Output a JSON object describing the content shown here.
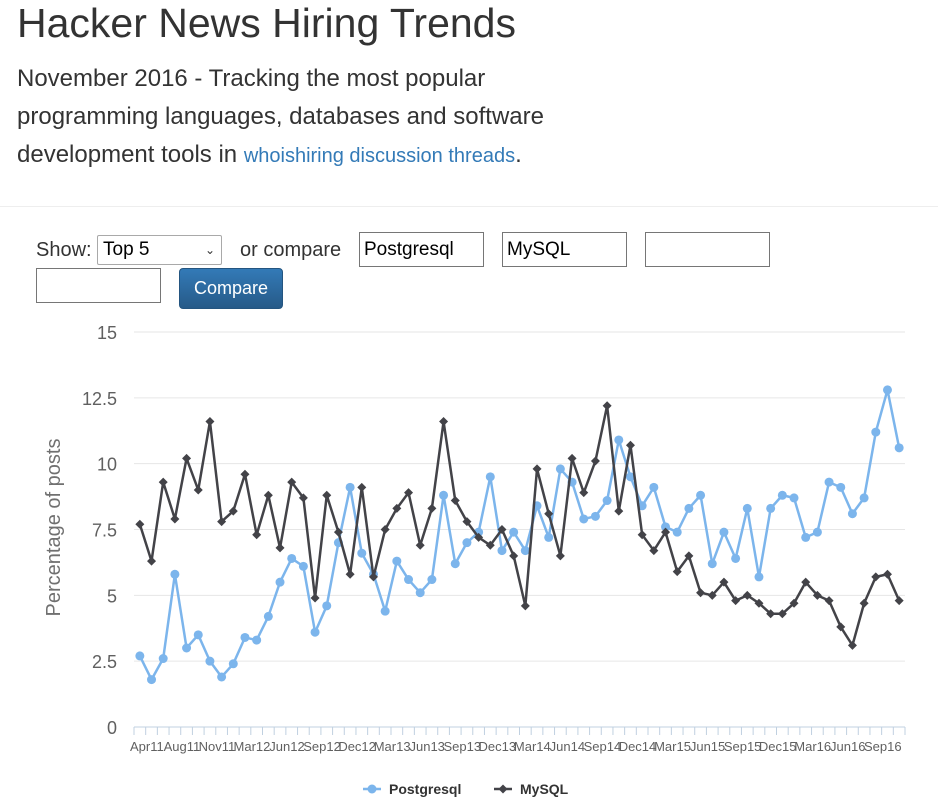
{
  "header": {
    "title": "Hacker News Hiring Trends",
    "lead_text": "November 2016 - Tracking the most popular programming languages, databases and software development tools in",
    "lead_link": "whoishiring discussion threads",
    "lead_end": "."
  },
  "controls": {
    "show_label": "Show:",
    "select_value": "Top 5",
    "compare_label": "or compare",
    "inputs": [
      "Postgresql",
      "MySQL",
      "",
      ""
    ],
    "compare_button": "Compare"
  },
  "chart_data": {
    "type": "line",
    "ylabel": "Percentage of posts",
    "ylim": [
      0,
      15
    ],
    "yticks": [
      "0",
      "2.5",
      "5",
      "7.5",
      "10",
      "12.5",
      "15"
    ],
    "xtick_labels": [
      "Apr11",
      "Aug11",
      "Nov11",
      "Mar12",
      "Jun12",
      "Sep12",
      "Dec12",
      "Mar13",
      "Jun13",
      "Sep13",
      "Dec13",
      "Mar14",
      "Jun14",
      "Sep14",
      "Dec14",
      "Mar15",
      "Jun15",
      "Sep15",
      "Dec15",
      "Mar16",
      "Jun16",
      "Sep16"
    ],
    "legend_position": "bottom",
    "series": [
      {
        "name": "Postgresql",
        "color": "#7cb5ec",
        "marker": "circle",
        "values": [
          2.7,
          1.8,
          2.6,
          5.8,
          3.0,
          3.5,
          2.5,
          1.9,
          2.4,
          3.4,
          3.3,
          4.2,
          5.5,
          6.4,
          6.1,
          3.6,
          4.6,
          7.0,
          9.1,
          6.6,
          5.8,
          4.4,
          6.3,
          5.6,
          5.1,
          5.6,
          8.8,
          6.2,
          7.0,
          7.4,
          9.5,
          6.7,
          7.4,
          6.7,
          8.4,
          7.2,
          9.8,
          9.3,
          7.9,
          8.0,
          8.6,
          10.9,
          9.5,
          8.4,
          9.1,
          7.6,
          7.4,
          8.3,
          8.8,
          6.2,
          7.4,
          6.4,
          8.3,
          5.7,
          8.3,
          8.8,
          8.7,
          7.2,
          7.4,
          9.3,
          9.1,
          8.1,
          8.7,
          11.2,
          12.8,
          10.6
        ]
      },
      {
        "name": "MySQL",
        "color": "#434348",
        "marker": "diamond",
        "values": [
          7.7,
          6.3,
          9.3,
          7.9,
          10.2,
          9.0,
          11.6,
          7.8,
          8.2,
          9.6,
          7.3,
          8.8,
          6.8,
          9.3,
          8.7,
          4.9,
          8.8,
          7.4,
          5.8,
          9.1,
          5.7,
          7.5,
          8.3,
          8.9,
          6.9,
          8.3,
          11.6,
          8.6,
          7.8,
          7.2,
          6.9,
          7.5,
          6.5,
          4.6,
          9.8,
          8.1,
          6.5,
          10.2,
          8.9,
          10.1,
          12.2,
          8.2,
          10.7,
          7.3,
          6.7,
          7.4,
          5.9,
          6.5,
          5.1,
          5.0,
          5.5,
          4.8,
          5.0,
          4.7,
          4.3,
          4.3,
          4.7,
          5.5,
          5.0,
          4.8,
          3.8,
          3.1,
          4.7,
          5.7,
          5.8,
          4.8
        ]
      }
    ]
  }
}
